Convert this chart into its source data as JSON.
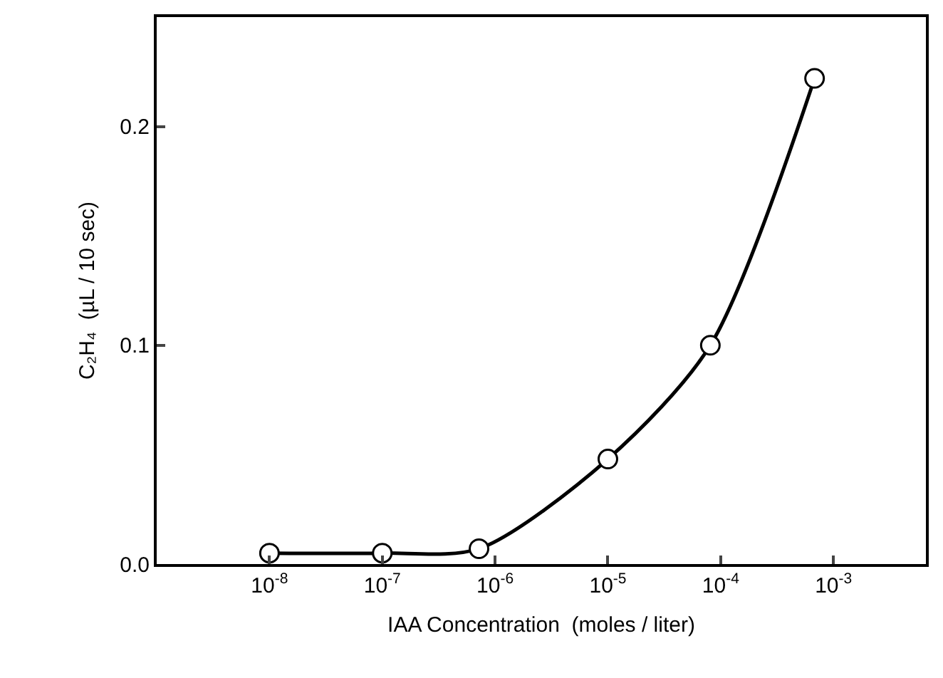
{
  "chart_data": {
    "type": "line",
    "xlabel": "IAA Concentration  (moles / liter)",
    "ylabel": "C₂H₄  (µL / 10 sec)",
    "x": [
      1e-08,
      1e-07,
      7.2e-07,
      1e-05,
      8.1e-05,
      0.00068
    ],
    "series": [
      {
        "color": "#000000",
        "values": [
          0.005,
          0.005,
          0.007,
          0.048,
          0.1,
          0.222
        ]
      }
    ],
    "log": "x",
    "xlim": [
      1e-09,
      0.0066
    ],
    "ylim": [
      0,
      0.25
    ],
    "xticks": [
      {
        "value": 1e-08,
        "label": "10$^{-8}$"
      },
      {
        "value": 1e-07,
        "label": "10$^{-7}$"
      },
      {
        "value": 1e-06,
        "label": "10$^{-6}$"
      },
      {
        "value": 1e-05,
        "label": "10$^{-5}$"
      },
      {
        "value": 0.0001,
        "label": "10$^{-4}$"
      },
      {
        "value": 0.001,
        "label": "10$^{-3}$"
      }
    ],
    "yticks": [
      {
        "value": 0,
        "label": "0.0"
      },
      {
        "value": 0.1,
        "label": "0.1"
      },
      {
        "value": 0.2,
        "label": "0.2"
      }
    ],
    "grid": false,
    "marker": "circle",
    "line_style": "solid"
  }
}
